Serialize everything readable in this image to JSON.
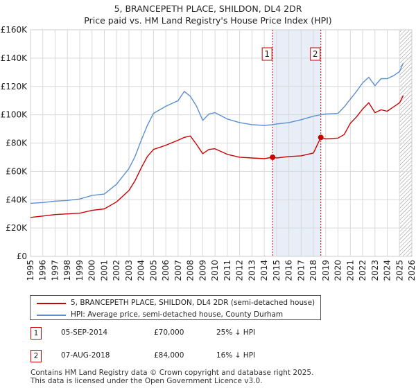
{
  "colors": {
    "property": "#cc0000",
    "hpi": "#5b8fcf",
    "band": "#e8eef8",
    "grid": "#d9d9d9",
    "hatch": "#888888"
  },
  "chart_data": {
    "type": "line",
    "title": "5, BRANCEPETH PLACE, SHILDON, DL4 2DR",
    "subtitle": "Price paid vs. HM Land Registry's House Price Index (HPI)",
    "xlim": [
      1995,
      2026
    ],
    "ylim": [
      0,
      160000
    ],
    "y_ticks": [
      0,
      20000,
      40000,
      60000,
      80000,
      100000,
      120000,
      140000,
      160000
    ],
    "y_tick_labels": [
      "£0",
      "£20K",
      "£40K",
      "£60K",
      "£80K",
      "£100K",
      "£120K",
      "£140K",
      "£160K"
    ],
    "x_ticks": [
      1995,
      1996,
      1997,
      1998,
      1999,
      2000,
      2001,
      2002,
      2003,
      2004,
      2005,
      2006,
      2007,
      2008,
      2009,
      2010,
      2011,
      2012,
      2013,
      2014,
      2015,
      2016,
      2017,
      2018,
      2019,
      2020,
      2021,
      2022,
      2023,
      2024,
      2025,
      2026
    ],
    "x_tick_labels": [
      "1995",
      "1996",
      "1997",
      "1998",
      "1999",
      "2000",
      "2001",
      "2002",
      "2003",
      "2004",
      "2005",
      "2006",
      "2007",
      "2008",
      "2009",
      "2010",
      "2011",
      "2012",
      "2013",
      "2014",
      "2015",
      "2016",
      "2017",
      "2018",
      "2019",
      "2020",
      "2021",
      "2022",
      "2023",
      "2024",
      "2025",
      "2026"
    ],
    "shaded_band": [
      2014.68,
      2018.6
    ],
    "forecast_from": 2025.0,
    "series": [
      {
        "name": "5, BRANCEPETH PLACE, SHILDON, DL4 2DR (semi-detached house)",
        "x": [
          1995,
          1996,
          1997,
          1998,
          1999,
          2000,
          2001,
          2002,
          2003,
          2003.5,
          2004,
          2004.5,
          2005,
          2006,
          2007,
          2007.5,
          2008,
          2008.5,
          2009,
          2009.5,
          2010,
          2011,
          2012,
          2013,
          2014,
          2014.68,
          2015,
          2016,
          2017,
          2018,
          2018.6,
          2019,
          2020,
          2020.5,
          2021,
          2021.5,
          2022,
          2022.5,
          2023,
          2023.5,
          2024,
          2024.5,
          2025,
          2025.3
        ],
        "values": [
          27500,
          28500,
          29500,
          30000,
          30500,
          32500,
          33500,
          38500,
          46500,
          53500,
          62500,
          70500,
          75500,
          78500,
          82000,
          84000,
          85000,
          79000,
          72500,
          75500,
          76000,
          72000,
          70000,
          69500,
          69000,
          70000,
          69500,
          70500,
          71000,
          73000,
          84000,
          83000,
          83500,
          86000,
          94000,
          98500,
          104000,
          108500,
          101500,
          103500,
          102500,
          105500,
          108500,
          113500
        ]
      },
      {
        "name": "HPI: Average price, semi-detached house, County Durham",
        "x": [
          1995,
          1996,
          1997,
          1998,
          1999,
          2000,
          2001,
          2002,
          2003,
          2003.5,
          2004,
          2004.5,
          2005,
          2006,
          2007,
          2007.5,
          2008,
          2008.5,
          2009,
          2009.5,
          2010,
          2011,
          2012,
          2013,
          2014,
          2014.68,
          2015,
          2016,
          2017,
          2018,
          2018.6,
          2019,
          2020,
          2020.5,
          2021,
          2021.5,
          2022,
          2022.5,
          2023,
          2023.5,
          2024,
          2024.5,
          2025,
          2025.3
        ],
        "values": [
          37500,
          38000,
          39000,
          39500,
          40500,
          43000,
          44000,
          51000,
          62000,
          70500,
          82000,
          92500,
          101000,
          106000,
          110000,
          116500,
          113000,
          106000,
          96000,
          100500,
          101500,
          97000,
          94500,
          93000,
          92500,
          93000,
          93500,
          94500,
          96500,
          99000,
          100000,
          100500,
          101000,
          105500,
          111000,
          116500,
          122500,
          126500,
          120500,
          125500,
          125500,
          127500,
          130500,
          136500
        ]
      }
    ],
    "sales": [
      {
        "marker": "1",
        "x": 2014.68,
        "y": 70000
      },
      {
        "marker": "2",
        "x": 2018.6,
        "y": 84000
      }
    ]
  },
  "legend": {
    "property": "5, BRANCEPETH PLACE, SHILDON, DL4 2DR (semi-detached house)",
    "hpi": "HPI: Average price, semi-detached house, County Durham"
  },
  "sales_table": [
    {
      "marker": "1",
      "date": "05-SEP-2014",
      "price": "£70,000",
      "hpi_diff": "25% ↓ HPI"
    },
    {
      "marker": "2",
      "date": "07-AUG-2018",
      "price": "£84,000",
      "hpi_diff": "16% ↓ HPI"
    }
  ],
  "footer": {
    "line1": "Contains HM Land Registry data © Crown copyright and database right 2025.",
    "line2": "This data is licensed under the Open Government Licence v3.0."
  }
}
